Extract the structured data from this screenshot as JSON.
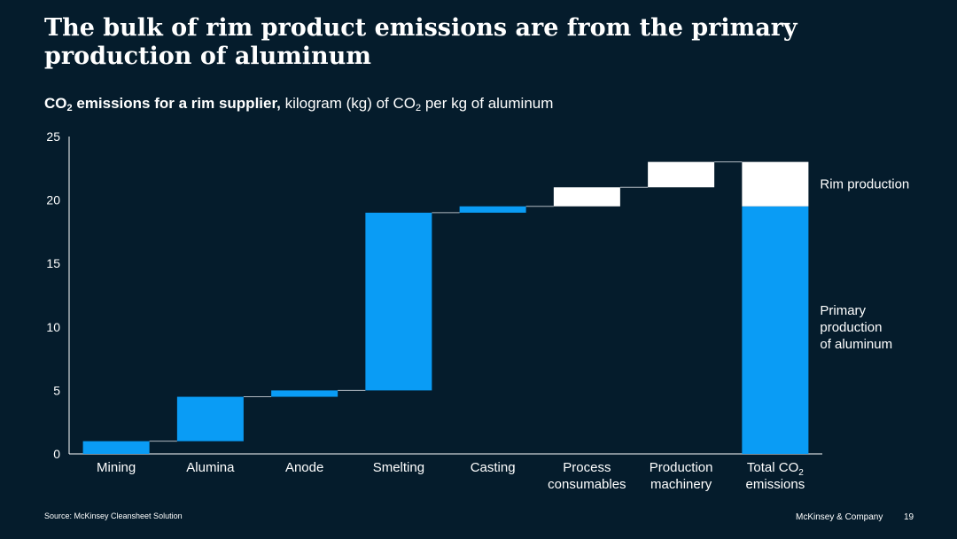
{
  "title": "The bulk of rim product emissions are from the primary production of aluminum",
  "subtitle": {
    "bold_prefix": "CO",
    "bold_sub": "2",
    "bold_suffix": " emissions for a rim supplier,",
    "rest_prefix": " kilogram (kg) of CO",
    "rest_sub": "2",
    "rest_suffix": " per kg of aluminum"
  },
  "chart_data": {
    "type": "bar",
    "subtype": "waterfall",
    "ylim": [
      0,
      25
    ],
    "yticks": [
      0,
      5,
      10,
      15,
      20,
      25
    ],
    "categories": [
      {
        "label": [
          "Mining"
        ],
        "start": 0,
        "end": 1.0,
        "group": "primary"
      },
      {
        "label": [
          "Alumina"
        ],
        "start": 1.0,
        "end": 4.5,
        "group": "primary"
      },
      {
        "label": [
          "Anode"
        ],
        "start": 4.5,
        "end": 5.0,
        "group": "primary"
      },
      {
        "label": [
          "Smelting"
        ],
        "start": 5.0,
        "end": 19.0,
        "group": "primary"
      },
      {
        "label": [
          "Casting"
        ],
        "start": 19.0,
        "end": 19.5,
        "group": "primary"
      },
      {
        "label": [
          "Process",
          "consumables"
        ],
        "start": 19.5,
        "end": 21.0,
        "group": "rim"
      },
      {
        "label": [
          "Production",
          "machinery"
        ],
        "start": 21.0,
        "end": 23.0,
        "group": "rim"
      }
    ],
    "total": {
      "label_line1_prefix": "Total CO",
      "label_line1_sub": "2",
      "label_line2": "emissions",
      "primary": 19.5,
      "rim": 3.5,
      "value": 23.0
    },
    "legend": {
      "rim": "Rim production",
      "primary": [
        "Primary",
        "production",
        "of aluminum"
      ]
    },
    "colors": {
      "primary": "#0a9cf5",
      "rim": "#ffffff",
      "axis": "#ffffff",
      "connector": "#b0b8c0"
    }
  },
  "footer": {
    "source": "Source: McKinsey Cleansheet Solution",
    "brand": "McKinsey & Company",
    "page": "19"
  }
}
